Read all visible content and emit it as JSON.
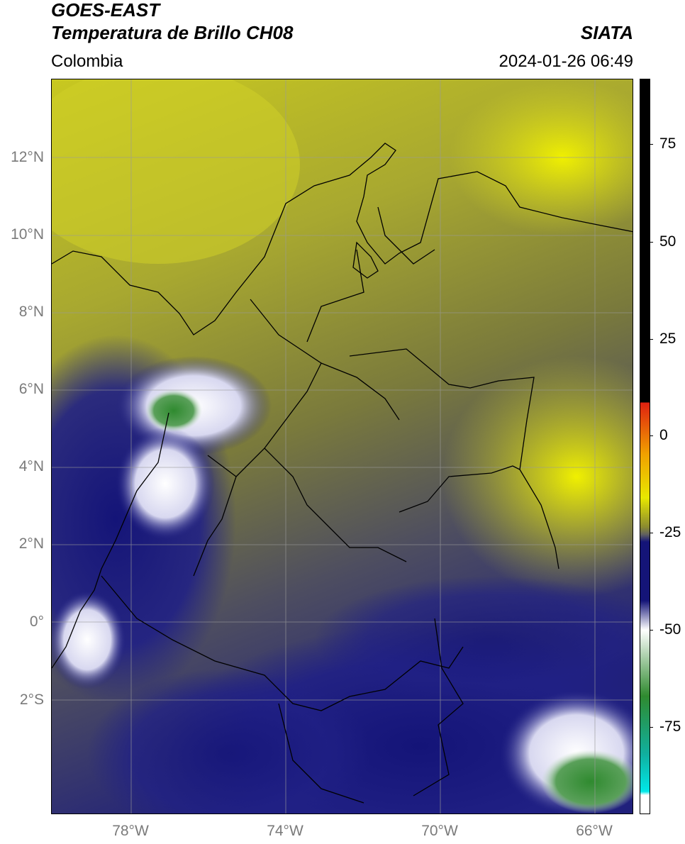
{
  "header": {
    "satellite": "GOES-EAST",
    "product": "Temperatura de Brillo CH08",
    "region": "Colombia",
    "organization": "SIATA",
    "timestamp": "2024-01-26 06:49"
  },
  "map": {
    "lat_labels": [
      "12°N",
      "10°N",
      "8°N",
      "6°N",
      "4°N",
      "2°N",
      "0°",
      "2°S"
    ],
    "lon_labels": [
      "78°W",
      "74°W",
      "70°W",
      "66°W"
    ]
  },
  "colorbar": {
    "tick_labels": [
      "75",
      "50",
      "25",
      "0",
      "-25",
      "-50",
      "-75"
    ],
    "palette": {
      "above_25": "#000000",
      "red": "#e02010",
      "orange": "#f0a000",
      "yellow": "#e8e800",
      "olive": "#8a8a30",
      "gray": "#606060",
      "navy": "#141478",
      "white": "#ffffff",
      "green": "#2f8a2f",
      "teal": "#10b0a0",
      "cyan": "#00e8e8"
    }
  }
}
